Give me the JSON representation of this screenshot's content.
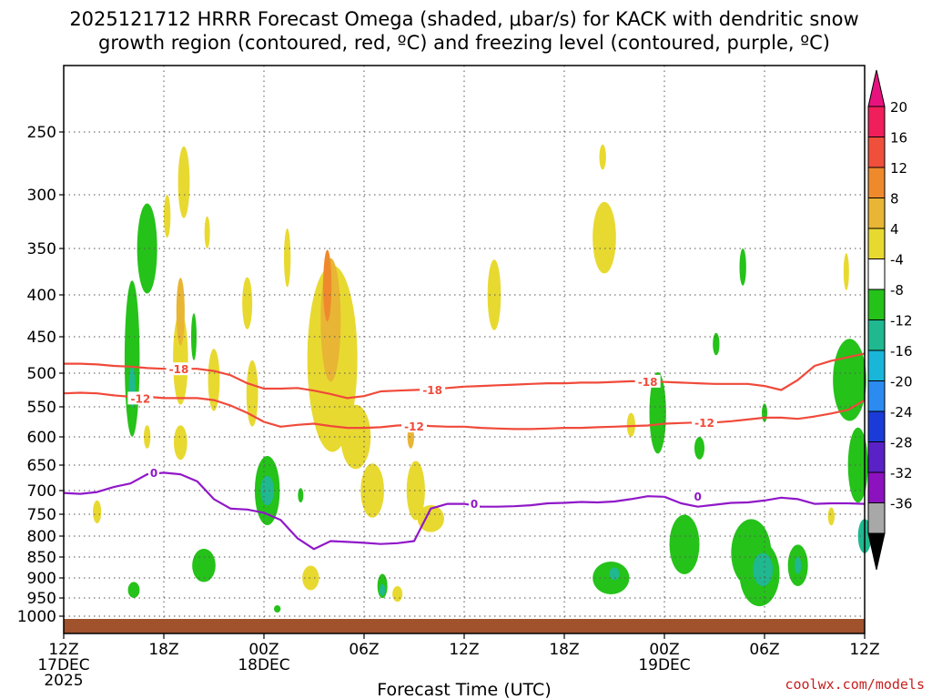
{
  "chart_data": {
    "type": "heatmap",
    "title_line1": "2025121712 HRRR Forecast Omega (shaded, μbar/s) for KACK with dendritic snow",
    "title_line2": "growth region (contoured, red, ºC) and freezing level (contoured, purple, ºC)",
    "xlabel": "Forecast Time (UTC)",
    "ylabel": "",
    "credit": "coolwx.com/models",
    "xlim_hours": [
      0,
      48
    ],
    "ylim_hpa": [
      1050,
      200
    ],
    "x_ticks": [
      {
        "h": 0,
        "l1": "12Z",
        "l2": "17DEC",
        "l3": "2025"
      },
      {
        "h": 6,
        "l1": "18Z",
        "l2": "",
        "l3": ""
      },
      {
        "h": 12,
        "l1": "00Z",
        "l2": "18DEC",
        "l3": ""
      },
      {
        "h": 18,
        "l1": "06Z",
        "l2": "",
        "l3": ""
      },
      {
        "h": 24,
        "l1": "12Z",
        "l2": "",
        "l3": ""
      },
      {
        "h": 30,
        "l1": "18Z",
        "l2": "",
        "l3": ""
      },
      {
        "h": 36,
        "l1": "00Z",
        "l2": "19DEC",
        "l3": ""
      },
      {
        "h": 42,
        "l1": "06Z",
        "l2": "",
        "l3": ""
      },
      {
        "h": 48,
        "l1": "12Z",
        "l2": "",
        "l3": ""
      }
    ],
    "y_ticks": [
      250,
      300,
      350,
      400,
      450,
      500,
      550,
      600,
      650,
      700,
      750,
      800,
      850,
      900,
      950,
      1000
    ],
    "colorbar": {
      "labels": [
        "20",
        "16",
        "12",
        "8",
        "4",
        "-4",
        "-8",
        "-12",
        "-16",
        "-20",
        "-24",
        "-28",
        "-32",
        "-36"
      ],
      "colors": [
        "#f01e5a",
        "#f04f3c",
        "#ef8a2c",
        "#e8b535",
        "#e8d931",
        "#ffffff",
        "#25c21a",
        "#1fb88f",
        "#19b6d9",
        "#2b8bf1",
        "#1a3bd8",
        "#5a22c6",
        "#8d12bf",
        "#a8a8a8"
      ],
      "top_arrow_color": "#e8127f",
      "bottom_arrow_color": "#000000"
    },
    "series": [
      {
        "name": "-18",
        "color": "#f04a3a",
        "x": [
          0,
          1,
          2,
          3,
          4,
          5,
          6,
          7,
          8,
          9,
          10,
          11,
          12,
          13,
          14,
          15,
          16,
          17,
          18,
          19,
          20,
          21,
          22,
          23,
          24,
          25,
          26,
          27,
          28,
          29,
          30,
          31,
          32,
          33,
          34,
          35,
          36,
          37,
          38,
          39,
          40,
          41,
          42,
          43,
          44,
          45,
          46,
          47,
          48
        ],
        "y": [
          487,
          487,
          488,
          490,
          491,
          493,
          494,
          494,
          494,
          497,
          503,
          515,
          523,
          523,
          522,
          526,
          531,
          537,
          534,
          527,
          526,
          525,
          524,
          522,
          520,
          519,
          518,
          517,
          516,
          515,
          515,
          514,
          514,
          513,
          512,
          512,
          513,
          514,
          515,
          516,
          516,
          516,
          519,
          525,
          510,
          490,
          483,
          478,
          473
        ]
      },
      {
        "name": "-12",
        "color": "#f04a3a",
        "x": [
          0,
          1,
          2,
          3,
          4,
          5,
          6,
          7,
          8,
          9,
          10,
          11,
          12,
          13,
          14,
          15,
          16,
          17,
          18,
          19,
          20,
          21,
          22,
          23,
          24,
          25,
          26,
          27,
          28,
          29,
          30,
          31,
          32,
          33,
          34,
          35,
          36,
          37,
          38,
          39,
          40,
          41,
          42,
          43,
          44,
          45,
          46,
          47,
          48
        ],
        "y": [
          530,
          529,
          530,
          533,
          535,
          535,
          537,
          537,
          537,
          540,
          548,
          560,
          575,
          583,
          580,
          578,
          582,
          585,
          585,
          584,
          581,
          580,
          582,
          583,
          583,
          585,
          586,
          587,
          587,
          586,
          585,
          585,
          584,
          583,
          582,
          581,
          578,
          577,
          576,
          576,
          574,
          571,
          568,
          568,
          570,
          566,
          561,
          555,
          540
        ]
      },
      {
        "name": "0",
        "color": "#9018c8",
        "x": [
          0,
          1,
          2,
          3,
          4,
          5,
          6,
          7,
          8,
          9,
          10,
          11,
          12,
          13,
          14,
          15,
          16,
          17,
          18,
          19,
          20,
          21,
          22,
          23,
          24,
          25,
          26,
          27,
          28,
          29,
          30,
          31,
          32,
          33,
          34,
          35,
          36,
          37,
          38,
          39,
          40,
          41,
          42,
          43,
          44,
          45,
          46,
          47,
          48
        ],
        "y": [
          705,
          707,
          703,
          693,
          686,
          668,
          665,
          668,
          682,
          718,
          738,
          740,
          747,
          763,
          805,
          831,
          812,
          814,
          816,
          819,
          817,
          812,
          738,
          728,
          728,
          734,
          734,
          733,
          731,
          727,
          726,
          724,
          725,
          723,
          718,
          712,
          713,
          727,
          734,
          730,
          726,
          725,
          721,
          715,
          718,
          728,
          727,
          727,
          728
        ]
      }
    ],
    "contour_labels": [
      {
        "text": "-18",
        "h": 6.9,
        "p": 494,
        "color": "#f04a3a"
      },
      {
        "text": "-18",
        "h": 22.1,
        "p": 524,
        "color": "#f04a3a"
      },
      {
        "text": "-18",
        "h": 35.0,
        "p": 512,
        "color": "#f04a3a"
      },
      {
        "text": "-12",
        "h": 4.6,
        "p": 537,
        "color": "#f04a3a"
      },
      {
        "text": "-12",
        "h": 21.0,
        "p": 582,
        "color": "#f04a3a"
      },
      {
        "text": "-12",
        "h": 38.4,
        "p": 576,
        "color": "#f04a3a"
      },
      {
        "text": "0",
        "h": 5.4,
        "p": 664,
        "color": "#9018c8"
      },
      {
        "text": "0",
        "h": 24.6,
        "p": 727,
        "color": "#9018c8"
      },
      {
        "text": "0",
        "h": 38.0,
        "p": 712,
        "color": "#9018c8"
      }
    ],
    "omega_cells": [
      {
        "h": 7.0,
        "p": 480,
        "dh": 0.45,
        "dp": 125,
        "v": 4
      },
      {
        "h": 7.0,
        "p": 420,
        "dh": 0.25,
        "dp": 80,
        "v": 8
      },
      {
        "h": 9.0,
        "p": 510,
        "dh": 0.35,
        "dp": 90,
        "v": 4
      },
      {
        "h": 11.3,
        "p": 530,
        "dh": 0.35,
        "dp": 100,
        "v": 4
      },
      {
        "h": 11.0,
        "p": 410,
        "dh": 0.3,
        "dp": 60,
        "v": 4
      },
      {
        "h": 16.0,
        "p": 500,
        "dh": 1.0,
        "dp": 185,
        "v": 4
      },
      {
        "h": 16.0,
        "p": 430,
        "dh": 0.6,
        "dp": 150,
        "v": 8
      },
      {
        "h": 15.8,
        "p": 390,
        "dh": 0.25,
        "dp": 80,
        "v": 12
      },
      {
        "h": 16.1,
        "p": 480,
        "dh": 1.5,
        "dp": 250,
        "v": 4
      },
      {
        "h": 17.5,
        "p": 600,
        "dh": 0.9,
        "dp": 110,
        "v": 4
      },
      {
        "h": 18.5,
        "p": 700,
        "dh": 0.7,
        "dp": 110,
        "v": 4
      },
      {
        "h": 21.1,
        "p": 700,
        "dh": 0.55,
        "dp": 120,
        "v": 4
      },
      {
        "h": 20.8,
        "p": 600,
        "dh": 0.2,
        "dp": 40,
        "v": 8
      },
      {
        "h": 22.0,
        "p": 760,
        "dh": 0.8,
        "dp": 60,
        "v": 4
      },
      {
        "h": 14.8,
        "p": 900,
        "dh": 0.5,
        "dp": 60,
        "v": 4
      },
      {
        "h": 20.0,
        "p": 940,
        "dh": 0.3,
        "dp": 40,
        "v": 4
      },
      {
        "h": 7.0,
        "p": 610,
        "dh": 0.4,
        "dp": 60,
        "v": 4
      },
      {
        "h": 6.2,
        "p": 320,
        "dh": 0.2,
        "dp": 40,
        "v": 4
      },
      {
        "h": 7.2,
        "p": 290,
        "dh": 0.35,
        "dp": 60,
        "v": 4
      },
      {
        "h": 8.6,
        "p": 335,
        "dh": 0.12,
        "dp": 30,
        "v": 4
      },
      {
        "h": 13.4,
        "p": 360,
        "dh": 0.2,
        "dp": 60,
        "v": 4
      },
      {
        "h": 25.8,
        "p": 400,
        "dh": 0.4,
        "dp": 80,
        "v": 4
      },
      {
        "h": 32.4,
        "p": 340,
        "dh": 0.7,
        "dp": 70,
        "v": 4
      },
      {
        "h": 32.3,
        "p": 270,
        "dh": 0.2,
        "dp": 20,
        "v": 4
      },
      {
        "h": 34.0,
        "p": 580,
        "dh": 0.25,
        "dp": 40,
        "v": 4
      },
      {
        "h": 46.0,
        "p": 755,
        "dh": 0.2,
        "dp": 40,
        "v": 4
      },
      {
        "h": 46.9,
        "p": 375,
        "dh": 0.1,
        "dp": 40,
        "v": 4
      },
      {
        "h": 5.0,
        "p": 600,
        "dh": 0.2,
        "dp": 40,
        "v": 4
      },
      {
        "h": 2.0,
        "p": 745,
        "dh": 0.25,
        "dp": 50,
        "v": 4
      },
      {
        "h": 4.1,
        "p": 480,
        "dh": 0.45,
        "dp": 210,
        "v": -4
      },
      {
        "h": 4.1,
        "p": 520,
        "dh": 0.2,
        "dp": 60,
        "v": -8
      },
      {
        "h": 5.0,
        "p": 350,
        "dh": 0.6,
        "dp": 90,
        "v": -4
      },
      {
        "h": 7.8,
        "p": 450,
        "dh": 0.15,
        "dp": 60,
        "v": -4
      },
      {
        "h": 8.4,
        "p": 870,
        "dh": 0.7,
        "dp": 80,
        "v": -4
      },
      {
        "h": 12.2,
        "p": 700,
        "dh": 0.75,
        "dp": 140,
        "v": -4
      },
      {
        "h": 12.2,
        "p": 700,
        "dh": 0.4,
        "dp": 60,
        "v": -8
      },
      {
        "h": 14.2,
        "p": 710,
        "dh": 0.15,
        "dp": 30,
        "v": -4
      },
      {
        "h": 4.2,
        "p": 930,
        "dh": 0.35,
        "dp": 40,
        "v": -4
      },
      {
        "h": 19.1,
        "p": 920,
        "dh": 0.3,
        "dp": 60,
        "v": -4
      },
      {
        "h": 19.1,
        "p": 930,
        "dh": 0.15,
        "dp": 30,
        "v": -8
      },
      {
        "h": 12.8,
        "p": 980,
        "dh": 0.2,
        "dp": 20,
        "v": -4
      },
      {
        "h": 32.8,
        "p": 900,
        "dh": 1.1,
        "dp": 80,
        "v": -4
      },
      {
        "h": 33.0,
        "p": 890,
        "dh": 0.3,
        "dp": 30,
        "v": -8
      },
      {
        "h": 35.6,
        "p": 560,
        "dh": 0.5,
        "dp": 130,
        "v": -4
      },
      {
        "h": 38.1,
        "p": 620,
        "dh": 0.3,
        "dp": 40,
        "v": -4
      },
      {
        "h": 37.2,
        "p": 820,
        "dh": 0.9,
        "dp": 140,
        "v": -4
      },
      {
        "h": 41.2,
        "p": 840,
        "dh": 1.2,
        "dp": 160,
        "v": -4
      },
      {
        "h": 40.7,
        "p": 370,
        "dh": 0.2,
        "dp": 40,
        "v": -4
      },
      {
        "h": 39.1,
        "p": 460,
        "dh": 0.2,
        "dp": 30,
        "v": -4
      },
      {
        "h": 41.7,
        "p": 890,
        "dh": 1.2,
        "dp": 160,
        "v": -4
      },
      {
        "h": 41.9,
        "p": 880,
        "dh": 0.6,
        "dp": 80,
        "v": -8
      },
      {
        "h": 44.0,
        "p": 870,
        "dh": 0.6,
        "dp": 100,
        "v": -4
      },
      {
        "h": 44.0,
        "p": 870,
        "dh": 0.2,
        "dp": 40,
        "v": -8
      },
      {
        "h": 47.1,
        "p": 510,
        "dh": 1.0,
        "dp": 120,
        "v": -4
      },
      {
        "h": 47.6,
        "p": 650,
        "dh": 0.6,
        "dp": 140,
        "v": -4
      },
      {
        "h": 48.0,
        "p": 800,
        "dh": 0.4,
        "dp": 80,
        "v": -8
      },
      {
        "h": 42.0,
        "p": 560,
        "dh": 0.15,
        "dp": 30,
        "v": -4
      }
    ]
  }
}
